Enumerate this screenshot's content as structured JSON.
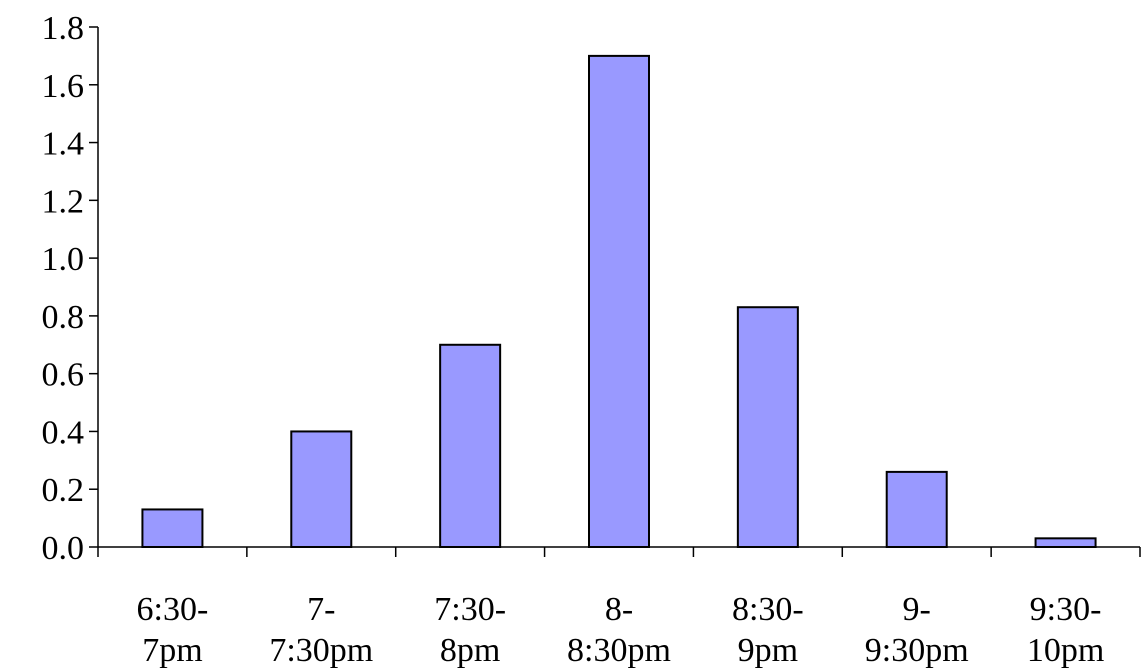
{
  "chart_data": {
    "type": "bar",
    "title": "",
    "xlabel": "",
    "ylabel": "",
    "categories": [
      [
        "6:30-",
        "7pm"
      ],
      [
        "7-",
        "7:30pm"
      ],
      [
        "7:30-",
        "8pm"
      ],
      [
        "8-",
        "8:30pm"
      ],
      [
        "8:30-",
        "9pm"
      ],
      [
        "9-",
        "9:30pm"
      ],
      [
        "9:30-",
        "10pm"
      ]
    ],
    "values": [
      0.13,
      0.4,
      0.7,
      1.7,
      0.83,
      0.26,
      0.03
    ],
    "ylim": [
      0,
      1.8
    ],
    "yticks": [
      "0.0",
      "0.2",
      "0.4",
      "0.6",
      "0.8",
      "1.0",
      "1.2",
      "1.4",
      "1.6",
      "1.8"
    ],
    "grid": false,
    "legend": "none",
    "bar_color": "#9999ff",
    "edge_color": "#000000"
  }
}
